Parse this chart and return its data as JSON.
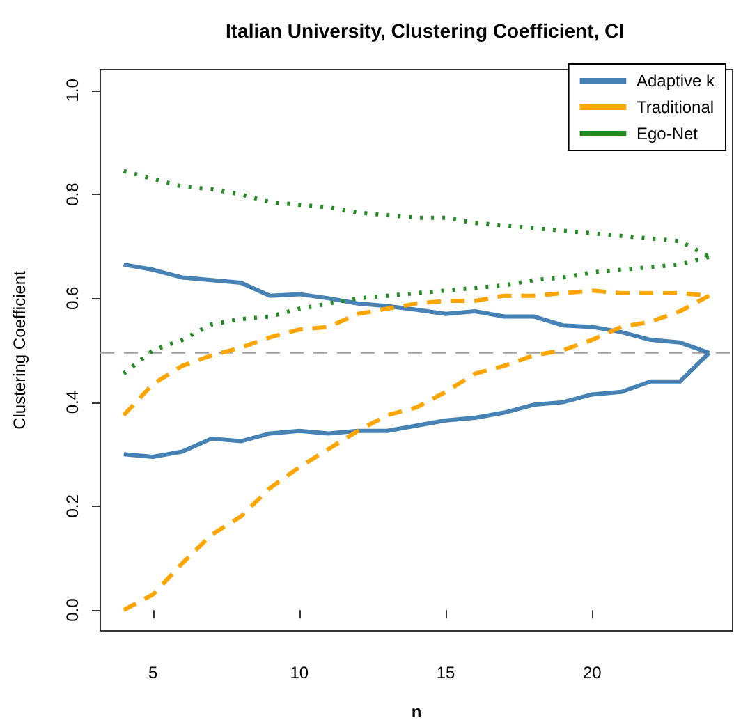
{
  "chart_data": {
    "type": "line",
    "title": "Italian University, Clustering Coefficient, CI",
    "xlabel": "n",
    "ylabel": "Clustering Coefficient",
    "x": [
      4,
      5,
      6,
      7,
      8,
      9,
      10,
      11,
      12,
      13,
      14,
      15,
      16,
      17,
      18,
      19,
      20,
      21,
      22,
      23,
      24
    ],
    "series": [
      {
        "name": "Adaptive k",
        "color": "#4682b4",
        "line_style": "solid",
        "values": [
          0.665,
          0.655,
          0.64,
          0.635,
          0.63,
          0.605,
          0.608,
          0.6,
          0.59,
          0.585,
          0.578,
          0.57,
          0.575,
          0.565,
          0.565,
          0.548,
          0.545,
          0.535,
          0.52,
          0.515,
          0.495
        ]
      },
      {
        "color": "#4682b4",
        "line_style": "solid",
        "values": [
          0.3,
          0.295,
          0.305,
          0.33,
          0.325,
          0.34,
          0.345,
          0.34,
          0.345,
          0.345,
          0.355,
          0.365,
          0.37,
          0.38,
          0.395,
          0.4,
          0.415,
          0.42,
          0.44,
          0.44,
          0.495
        ]
      },
      {
        "name": "Traditional",
        "color": "#ffa500",
        "line_style": "dashed",
        "values": [
          0.375,
          0.435,
          0.47,
          0.49,
          0.505,
          0.525,
          0.54,
          0.545,
          0.57,
          0.58,
          0.59,
          0.595,
          0.595,
          0.605,
          0.605,
          0.61,
          0.615,
          0.61,
          0.61,
          0.61,
          0.605
        ]
      },
      {
        "color": "#ffa500",
        "line_style": "dashed",
        "values": [
          0.0,
          0.03,
          0.09,
          0.145,
          0.18,
          0.235,
          0.275,
          0.31,
          0.345,
          0.375,
          0.39,
          0.42,
          0.455,
          0.47,
          0.49,
          0.5,
          0.52,
          0.545,
          0.555,
          0.575,
          0.605
        ]
      },
      {
        "name": "Ego-Net",
        "color": "#228b22",
        "line_style": "dotted",
        "values": [
          0.845,
          0.83,
          0.815,
          0.81,
          0.8,
          0.785,
          0.78,
          0.775,
          0.765,
          0.76,
          0.755,
          0.755,
          0.745,
          0.74,
          0.735,
          0.73,
          0.725,
          0.72,
          0.715,
          0.71,
          0.68
        ]
      },
      {
        "color": "#228b22",
        "line_style": "dotted",
        "values": [
          0.455,
          0.5,
          0.52,
          0.55,
          0.56,
          0.565,
          0.58,
          0.59,
          0.6,
          0.605,
          0.61,
          0.615,
          0.62,
          0.625,
          0.635,
          0.64,
          0.65,
          0.655,
          0.66,
          0.665,
          0.68
        ]
      }
    ],
    "xlim": [
      3.2,
      24.8
    ],
    "xticks": [
      5,
      10,
      15,
      20
    ],
    "ylim": [
      -0.04,
      1.04
    ],
    "yticks": [
      {
        "value": 0,
        "label": "0.0"
      },
      {
        "value": 0.2,
        "label": "0.2"
      },
      {
        "value": 0.4,
        "label": "0.4"
      },
      {
        "value": 0.6,
        "label": "0.6"
      },
      {
        "value": 0.8,
        "label": "0.8"
      },
      {
        "value": 1,
        "label": "1.0"
      }
    ],
    "ref_lines": [
      {
        "axis": "y",
        "value": 0.495,
        "color": "#a0a0a0",
        "line_style": "dashed"
      }
    ],
    "grid": false,
    "legend": "top right",
    "marker": "none"
  }
}
